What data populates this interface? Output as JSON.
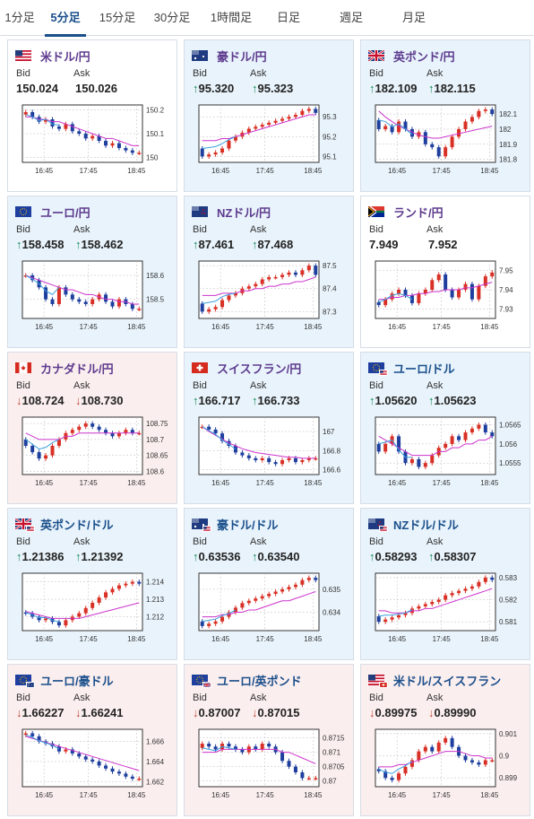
{
  "tabs": [
    {
      "label": "1分足",
      "active": false
    },
    {
      "label": "5分足",
      "active": true
    },
    {
      "label": "15分足",
      "active": false
    },
    {
      "label": "30分足",
      "active": false
    },
    {
      "label": "1時間足",
      "active": false
    },
    {
      "label": "日足",
      "active": false
    },
    {
      "label": "週足",
      "active": false
    },
    {
      "label": "月足",
      "active": false
    }
  ],
  "labels": {
    "bid": "Bid",
    "ask": "Ask"
  },
  "colors": {
    "up_bg": "#e8f3fb",
    "down_bg": "#fbeeee",
    "up_arrow": "#1a8a5a",
    "down_arrow": "#c24a3f",
    "bull_candle": "#d93025",
    "bear_candle": "#1f3f9e",
    "ma_line": "#cc33cc",
    "signal_line": "#3aa0e0"
  },
  "cards": [
    {
      "pair": "米ドル/円",
      "flag": "us-flag",
      "trend": "neutral",
      "bid": "150.024",
      "ask": "150.026",
      "bid_arrow": "",
      "ask_arrow": "",
      "chart_data": {
        "type": "line",
        "x_ticks": [
          "16:45",
          "17:45",
          "18:45"
        ],
        "y_ticks": [
          "150.2",
          "150.1",
          "150"
        ],
        "ylim": [
          149.98,
          150.22
        ],
        "close": [
          150.19,
          150.17,
          150.15,
          150.16,
          150.13,
          150.12,
          150.14,
          150.11,
          150.1,
          150.08,
          150.09,
          150.07,
          150.05,
          150.06,
          150.04,
          150.03,
          150.02,
          150.02
        ],
        "ma": [
          150.17,
          150.17,
          150.16,
          150.16,
          150.15,
          150.15,
          150.14,
          150.13,
          150.12,
          150.11,
          150.1,
          150.09,
          150.08,
          150.08,
          150.07,
          150.06,
          150.05,
          150.05
        ]
      }
    },
    {
      "pair": "豪ドル/円",
      "flag": "au-flag",
      "trend": "up",
      "bid": "95.320",
      "ask": "95.323",
      "bid_arrow": "↑",
      "ask_arrow": "↑",
      "chart_data": {
        "type": "line",
        "x_ticks": [
          "16:45",
          "17:45",
          "18:45"
        ],
        "y_ticks": [
          "95.3",
          "95.2",
          "95.1"
        ],
        "ylim": [
          95.07,
          95.36
        ],
        "close": [
          95.1,
          95.11,
          95.12,
          95.14,
          95.18,
          95.2,
          95.22,
          95.24,
          95.25,
          95.26,
          95.27,
          95.28,
          95.29,
          95.3,
          95.31,
          95.33,
          95.34,
          95.32
        ],
        "ma": [
          95.18,
          95.18,
          95.18,
          95.19,
          95.19,
          95.2,
          95.21,
          95.22,
          95.23,
          95.24,
          95.25,
          95.26,
          95.27,
          95.28,
          95.29,
          95.3,
          95.31,
          95.31
        ]
      }
    },
    {
      "pair": "英ポンド/円",
      "flag": "gb-flag",
      "trend": "up",
      "bid": "182.109",
      "ask": "182.115",
      "bid_arrow": "↑",
      "ask_arrow": "↑",
      "chart_data": {
        "type": "line",
        "x_ticks": [
          "16:45",
          "17:45",
          "18:45"
        ],
        "y_ticks": [
          "182.1",
          "182",
          "181.9",
          "181.8"
        ],
        "ylim": [
          181.78,
          182.16
        ],
        "close": [
          182.0,
          182.02,
          181.98,
          182.05,
          182.0,
          181.95,
          181.98,
          181.9,
          181.88,
          181.82,
          181.88,
          181.95,
          182.0,
          182.05,
          182.08,
          182.12,
          182.13,
          182.1
        ],
        "ma": [
          182.12,
          182.08,
          182.05,
          182.02,
          182.0,
          181.98,
          181.96,
          181.95,
          181.94,
          181.94,
          181.95,
          181.96,
          181.97,
          181.98,
          181.99,
          182.0,
          182.01,
          182.02
        ]
      }
    },
    {
      "pair": "ユーロ/円",
      "flag": "eu-flag",
      "trend": "up",
      "bid": "158.458",
      "ask": "158.462",
      "bid_arrow": "↑",
      "ask_arrow": "↑",
      "chart_data": {
        "type": "line",
        "x_ticks": [
          "16:45",
          "17:45",
          "18:45"
        ],
        "y_ticks": [
          "158.6",
          "158.5"
        ],
        "ylim": [
          158.42,
          158.66
        ],
        "close": [
          158.6,
          158.58,
          158.55,
          158.5,
          158.48,
          158.55,
          158.52,
          158.5,
          158.49,
          158.48,
          158.5,
          158.52,
          158.49,
          158.47,
          158.5,
          158.48,
          158.46,
          158.46
        ],
        "ma": [
          158.6,
          158.59,
          158.58,
          158.57,
          158.56,
          158.55,
          158.54,
          158.54,
          158.53,
          158.52,
          158.52,
          158.51,
          158.5,
          158.5,
          158.49,
          158.49,
          158.48,
          158.48
        ]
      }
    },
    {
      "pair": "NZドル/円",
      "flag": "nz-flag",
      "trend": "up",
      "bid": "87.461",
      "ask": "87.468",
      "bid_arrow": "↑",
      "ask_arrow": "↑",
      "chart_data": {
        "type": "line",
        "x_ticks": [
          "16:45",
          "17:45",
          "18:45"
        ],
        "y_ticks": [
          "87.5",
          "87.4",
          "87.3"
        ],
        "ylim": [
          87.27,
          87.52
        ],
        "close": [
          87.3,
          87.31,
          87.32,
          87.35,
          87.37,
          87.38,
          87.4,
          87.41,
          87.42,
          87.44,
          87.45,
          87.45,
          87.46,
          87.47,
          87.46,
          87.48,
          87.5,
          87.46
        ],
        "ma": [
          87.37,
          87.37,
          87.37,
          87.38,
          87.38,
          87.38,
          87.39,
          87.39,
          87.4,
          87.4,
          87.41,
          87.41,
          87.42,
          87.42,
          87.43,
          87.43,
          87.44,
          87.45
        ]
      }
    },
    {
      "pair": "ランド/円",
      "flag": "za-flag",
      "trend": "neutral",
      "bid": "7.949",
      "ask": "7.952",
      "bid_arrow": "",
      "ask_arrow": "",
      "chart_data": {
        "type": "line",
        "x_ticks": [
          "16:45",
          "17:45",
          "18:45"
        ],
        "y_ticks": [
          "7.95",
          "7.94",
          "7.93"
        ],
        "ylim": [
          7.925,
          7.955
        ],
        "close": [
          7.932,
          7.935,
          7.938,
          7.94,
          7.937,
          7.933,
          7.938,
          7.94,
          7.945,
          7.948,
          7.94,
          7.936,
          7.94,
          7.943,
          7.935,
          7.942,
          7.947,
          7.949
        ],
        "ma": [
          7.935,
          7.935,
          7.936,
          7.936,
          7.937,
          7.937,
          7.938,
          7.938,
          7.939,
          7.939,
          7.94,
          7.94,
          7.94,
          7.941,
          7.941,
          7.942,
          7.943,
          7.944
        ]
      }
    },
    {
      "pair": "カナダドル/円",
      "flag": "ca-flag",
      "trend": "down",
      "bid": "108.724",
      "ask": "108.730",
      "bid_arrow": "↓",
      "ask_arrow": "↓",
      "chart_data": {
        "type": "line",
        "x_ticks": [
          "16:45",
          "17:45",
          "18:45"
        ],
        "y_ticks": [
          "108.75",
          "108.7",
          "108.65",
          "108.6"
        ],
        "ylim": [
          108.59,
          108.77
        ],
        "close": [
          108.68,
          108.66,
          108.64,
          108.65,
          108.68,
          108.7,
          108.72,
          108.73,
          108.74,
          108.75,
          108.74,
          108.73,
          108.72,
          108.71,
          108.72,
          108.73,
          108.72,
          108.72
        ],
        "ma": [
          108.72,
          108.71,
          108.7,
          108.7,
          108.7,
          108.7,
          108.71,
          108.71,
          108.72,
          108.72,
          108.72,
          108.72,
          108.72,
          108.72,
          108.72,
          108.72,
          108.72,
          108.72
        ]
      }
    },
    {
      "pair": "スイスフラン/円",
      "flag": "ch-flag",
      "trend": "up",
      "bid": "166.717",
      "ask": "166.733",
      "bid_arrow": "↑",
      "ask_arrow": "↑",
      "chart_data": {
        "type": "line",
        "x_ticks": [
          "16:45",
          "17:45",
          "18:45"
        ],
        "y_ticks": [
          "167",
          "166.8",
          "166.6"
        ],
        "ylim": [
          166.55,
          167.15
        ],
        "close": [
          167.05,
          167.02,
          166.98,
          166.9,
          166.85,
          166.78,
          166.75,
          166.72,
          166.7,
          166.72,
          166.68,
          166.66,
          166.7,
          166.72,
          166.68,
          166.7,
          166.72,
          166.72
        ],
        "ma": [
          167.05,
          167.0,
          166.96,
          166.92,
          166.88,
          166.85,
          166.82,
          166.8,
          166.78,
          166.77,
          166.76,
          166.75,
          166.74,
          166.73,
          166.73,
          166.72,
          166.72,
          166.72
        ]
      }
    },
    {
      "pair": "ユーロ/ドル",
      "flag": "eu-us-flag",
      "trend": "up",
      "bid": "1.05620",
      "ask": "1.05623",
      "bid_arrow": "↑",
      "ask_arrow": "↑",
      "chart_data": {
        "type": "line",
        "x_ticks": [
          "16:45",
          "17:45",
          "18:45"
        ],
        "y_ticks": [
          "1.0565",
          "1.056",
          "1.0555"
        ],
        "ylim": [
          1.0552,
          1.0567
        ],
        "close": [
          1.0558,
          1.056,
          1.0562,
          1.0558,
          1.0555,
          1.0556,
          1.0554,
          1.0555,
          1.0557,
          1.0559,
          1.056,
          1.0562,
          1.0561,
          1.0563,
          1.0564,
          1.0565,
          1.0563,
          1.0562
        ],
        "ma": [
          1.0562,
          1.0561,
          1.056,
          1.0559,
          1.0558,
          1.0557,
          1.0557,
          1.0557,
          1.0557,
          1.0558,
          1.0558,
          1.0559,
          1.0559,
          1.056,
          1.056,
          1.0561,
          1.0561,
          1.0562
        ]
      }
    },
    {
      "pair": "英ポンド/ドル",
      "flag": "gb-us-flag",
      "trend": "up",
      "bid": "1.21386",
      "ask": "1.21392",
      "bid_arrow": "↑",
      "ask_arrow": "↑",
      "chart_data": {
        "type": "line",
        "x_ticks": [
          "16:45",
          "17:45",
          "18:45"
        ],
        "y_ticks": [
          "1.214",
          "1.213",
          "1.212"
        ],
        "ylim": [
          1.2112,
          1.2145
        ],
        "close": [
          1.2122,
          1.212,
          1.2118,
          1.2119,
          1.2117,
          1.2115,
          1.2118,
          1.212,
          1.2122,
          1.2125,
          1.2128,
          1.2131,
          1.2134,
          1.2136,
          1.2138,
          1.2139,
          1.214,
          1.2139
        ],
        "ma": [
          1.2123,
          1.2122,
          1.2121,
          1.212,
          1.2119,
          1.2119,
          1.2119,
          1.2119,
          1.2119,
          1.212,
          1.2121,
          1.2122,
          1.2123,
          1.2124,
          1.2125,
          1.2126,
          1.2127,
          1.2128
        ]
      }
    },
    {
      "pair": "豪ドル/ドル",
      "flag": "au-us-flag",
      "trend": "up",
      "bid": "0.63536",
      "ask": "0.63540",
      "bid_arrow": "↑",
      "ask_arrow": "↑",
      "chart_data": {
        "type": "line",
        "x_ticks": [
          "16:45",
          "17:45",
          "18:45"
        ],
        "y_ticks": [
          "0.635",
          "0.634"
        ],
        "ylim": [
          0.6332,
          0.6357
        ],
        "close": [
          0.6334,
          0.6335,
          0.6336,
          0.6338,
          0.634,
          0.6342,
          0.6344,
          0.6345,
          0.6346,
          0.6347,
          0.6348,
          0.6349,
          0.635,
          0.6351,
          0.6352,
          0.6354,
          0.6355,
          0.6354
        ],
        "ma": [
          0.6338,
          0.6338,
          0.6338,
          0.6339,
          0.6339,
          0.634,
          0.634,
          0.6341,
          0.6341,
          0.6342,
          0.6343,
          0.6344,
          0.6345,
          0.6345,
          0.6346,
          0.6347,
          0.6348,
          0.6349
        ]
      }
    },
    {
      "pair": "NZドル/ドル",
      "flag": "nz-us-flag",
      "trend": "up",
      "bid": "0.58293",
      "ask": "0.58307",
      "bid_arrow": "↑",
      "ask_arrow": "↑",
      "chart_data": {
        "type": "line",
        "x_ticks": [
          "16:45",
          "17:45",
          "18:45"
        ],
        "y_ticks": [
          "0.583",
          "0.582",
          "0.581"
        ],
        "ylim": [
          0.5806,
          0.5832
        ],
        "close": [
          0.581,
          0.5811,
          0.5812,
          0.5813,
          0.5814,
          0.5816,
          0.5817,
          0.5818,
          0.5819,
          0.582,
          0.5822,
          0.5823,
          0.5824,
          0.5825,
          0.5826,
          0.5828,
          0.583,
          0.5829
        ],
        "ma": [
          0.5815,
          0.5815,
          0.5814,
          0.5814,
          0.5814,
          0.5815,
          0.5815,
          0.5816,
          0.5816,
          0.5817,
          0.5818,
          0.5819,
          0.582,
          0.5821,
          0.5822,
          0.5823,
          0.5824,
          0.5825
        ]
      }
    },
    {
      "pair": "ユーロ/豪ドル",
      "flag": "eu-au-flag",
      "trend": "down",
      "bid": "1.66227",
      "ask": "1.66241",
      "bid_arrow": "↓",
      "ask_arrow": "↓",
      "chart_data": {
        "type": "line",
        "x_ticks": [
          "16:45",
          "17:45",
          "18:45"
        ],
        "y_ticks": [
          "1.666",
          "1.664",
          "1.662"
        ],
        "ylim": [
          1.6615,
          1.6672
        ],
        "close": [
          1.6668,
          1.6665,
          1.666,
          1.6658,
          1.6655,
          1.665,
          1.6652,
          1.6648,
          1.6645,
          1.6642,
          1.664,
          1.6636,
          1.6633,
          1.663,
          1.6628,
          1.6625,
          1.6623,
          1.6623
        ],
        "ma": [
          1.6665,
          1.6663,
          1.6661,
          1.6659,
          1.6657,
          1.6655,
          1.6653,
          1.6651,
          1.6649,
          1.6647,
          1.6645,
          1.6643,
          1.6641,
          1.6639,
          1.6637,
          1.6635,
          1.6633,
          1.6631
        ]
      }
    },
    {
      "pair": "ユーロ/英ポンド",
      "flag": "eu-gb-flag",
      "trend": "down",
      "bid": "0.87007",
      "ask": "0.87015",
      "bid_arrow": "↓",
      "ask_arrow": "↓",
      "chart_data": {
        "type": "line",
        "x_ticks": [
          "16:45",
          "17:45",
          "18:45"
        ],
        "y_ticks": [
          "0.8715",
          "0.871",
          "0.8705",
          "0.87"
        ],
        "ylim": [
          0.8698,
          0.8718
        ],
        "close": [
          0.8713,
          0.8712,
          0.8711,
          0.8713,
          0.8712,
          0.8711,
          0.871,
          0.8712,
          0.8711,
          0.8713,
          0.8712,
          0.871,
          0.8707,
          0.8705,
          0.8703,
          0.8701,
          0.8701,
          0.8701
        ],
        "ma": [
          0.871,
          0.871,
          0.871,
          0.8711,
          0.8711,
          0.8711,
          0.8711,
          0.8711,
          0.8711,
          0.8711,
          0.8711,
          0.8711,
          0.871,
          0.871,
          0.8709,
          0.8708,
          0.8707,
          0.8706
        ]
      }
    },
    {
      "pair": "米ドル/スイスフラン",
      "flag": "us-ch-flag",
      "trend": "down",
      "bid": "0.89975",
      "ask": "0.89990",
      "bid_arrow": "↓",
      "ask_arrow": "↓",
      "chart_data": {
        "type": "line",
        "x_ticks": [
          "16:45",
          "17:45",
          "18:45"
        ],
        "y_ticks": [
          "0.901",
          "0.9",
          "0.899"
        ],
        "ylim": [
          0.8986,
          0.9012
        ],
        "close": [
          0.8993,
          0.899,
          0.8989,
          0.8992,
          0.8995,
          0.8998,
          0.9002,
          0.9004,
          0.9002,
          0.9006,
          0.9008,
          0.9004,
          0.9,
          0.8998,
          0.8997,
          0.8996,
          0.8998,
          0.8998
        ],
        "ma": [
          0.8995,
          0.8995,
          0.8995,
          0.8996,
          0.8996,
          0.8997,
          0.8998,
          0.8999,
          0.9,
          0.9001,
          0.9002,
          0.9002,
          0.9002,
          0.9001,
          0.9,
          0.9,
          0.8999,
          0.8999
        ]
      }
    }
  ]
}
